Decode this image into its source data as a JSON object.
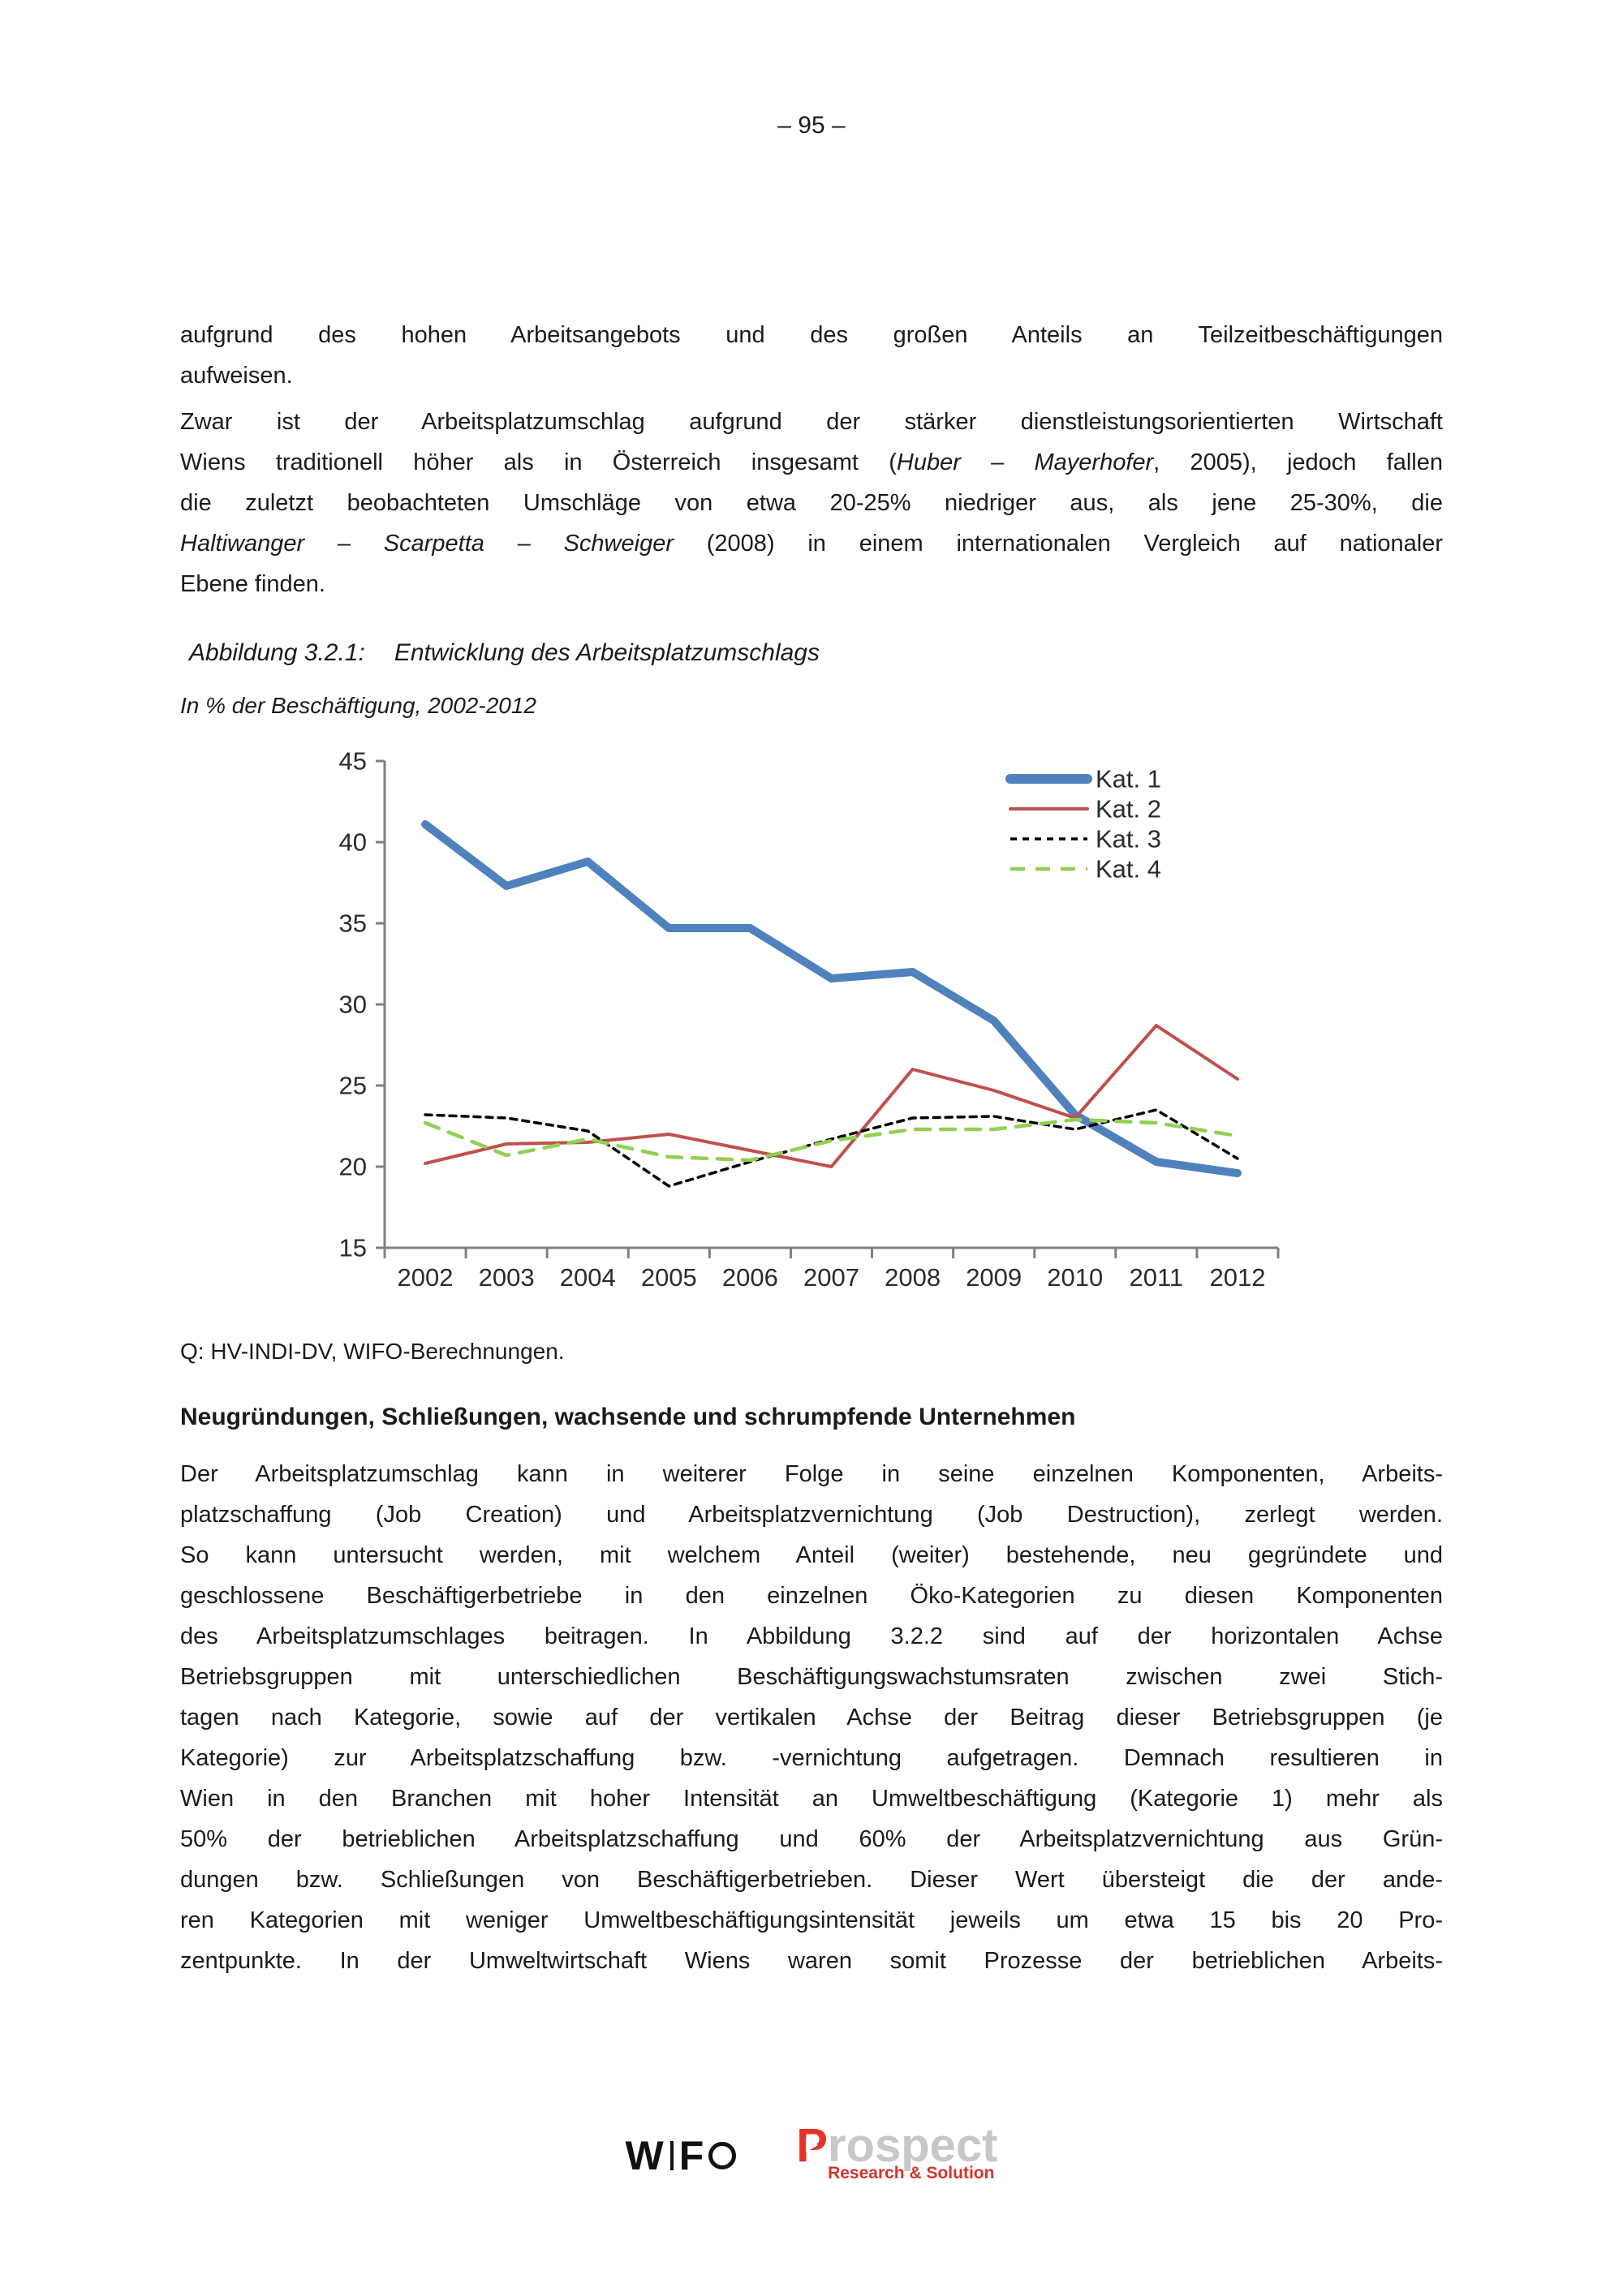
{
  "page": {
    "number": "– 95 –"
  },
  "intro": {
    "p1_lines": [
      {
        "text": "aufgrund des hohen Arbeitsangebots und des großen Anteils an Teilzeitbeschäftigungen",
        "just": true
      },
      {
        "text": "aufweisen.",
        "just": false
      }
    ],
    "p2_lines": [
      {
        "segs": [
          {
            "t": "Zwar ist der Arbeitsplatzumschlag aufgrund der stärker dienstleistungsorientierten Wirtschaft"
          }
        ],
        "just": true
      },
      {
        "segs": [
          {
            "t": "Wiens traditionell höher als in Österreich insgesamt ("
          },
          {
            "t": "Huber – Mayerhofer",
            "i": true
          },
          {
            "t": ", 2005), jedoch fallen"
          }
        ],
        "just": true
      },
      {
        "segs": [
          {
            "t": "die zuletzt beobachteten Umschläge von etwa 20-25% niedriger aus, als jene 25-30%, die"
          }
        ],
        "just": true
      },
      {
        "segs": [
          {
            "t": "Haltiwanger – Scarpetta – Schweiger",
            "i": true
          },
          {
            "t": " (2008) in einem internationalen Vergleich auf nationaler"
          }
        ],
        "just": true
      },
      {
        "segs": [
          {
            "t": "Ebene finden."
          }
        ],
        "just": false
      }
    ]
  },
  "figure": {
    "caption_label": "Abbildung 3.2.1:",
    "caption_title": "Entwicklung des Arbeitsplatzumschlags",
    "subtitle": "In % der Beschäftigung, 2002-2012",
    "source": "Q: HV-INDI-DV, WIFO-Berechnungen."
  },
  "chart_data": {
    "type": "line",
    "title": "Entwicklung des Arbeitsplatzumschlags",
    "subtitle": "In % der Beschäftigung, 2002-2012",
    "xlabel": "",
    "ylabel": "",
    "categories": [
      "2002",
      "2003",
      "2004",
      "2005",
      "2006",
      "2007",
      "2008",
      "2009",
      "2010",
      "2011",
      "2012"
    ],
    "series": [
      {
        "name": "Kat. 1",
        "color": "#4F81BD",
        "width": 10,
        "dash": "solid",
        "values": [
          41.1,
          37.3,
          38.8,
          34.7,
          34.7,
          31.6,
          32.0,
          29.0,
          23.2,
          20.3,
          19.6
        ]
      },
      {
        "name": "Kat. 2",
        "color": "#C0504D",
        "width": 4,
        "dash": "solid",
        "values": [
          20.2,
          21.4,
          21.5,
          22.0,
          21.0,
          20.0,
          26.0,
          24.7,
          23.0,
          28.7,
          25.4
        ]
      },
      {
        "name": "Kat. 3",
        "color": "#000000",
        "width": 3.5,
        "dash": "dotted",
        "values": [
          23.2,
          23.0,
          22.2,
          18.8,
          20.3,
          21.7,
          23.0,
          23.1,
          22.3,
          23.5,
          20.5
        ]
      },
      {
        "name": "Kat. 4",
        "color": "#92D050",
        "width": 4.5,
        "dash": "dashed",
        "values": [
          22.7,
          20.7,
          21.7,
          20.6,
          20.4,
          21.6,
          22.3,
          22.3,
          22.9,
          22.7,
          21.9
        ]
      }
    ],
    "ylim": [
      15,
      45
    ],
    "ytick_step": 5,
    "grid": false,
    "legend_position": "top-right",
    "axis_color": "#808080"
  },
  "section": {
    "heading": "Neugründungen, Schließungen, wachsende und schrumpfende Unternehmen"
  },
  "body_lines": [
    {
      "text": "Der Arbeitsplatzumschlag kann in weiterer Folge in seine einzelnen Komponenten, Arbeits-",
      "just": true
    },
    {
      "text": "platzschaffung (Job Creation) und Arbeitsplatzvernichtung (Job Destruction), zerlegt werden.",
      "just": true
    },
    {
      "text": "So kann untersucht werden, mit welchem Anteil (weiter) bestehende, neu gegründete und",
      "just": true
    },
    {
      "text": "geschlossene Beschäftigerbetriebe in den einzelnen Öko-Kategorien zu diesen Komponenten",
      "just": true
    },
    {
      "text": "des Arbeitsplatzumschlages beitragen. In Abbildung 3.2.2 sind auf der horizontalen Achse",
      "just": true
    },
    {
      "text": "Betriebsgruppen mit unterschiedlichen Beschäftigungswachstumsraten zwischen zwei Stich-",
      "just": true
    },
    {
      "text": "tagen nach Kategorie, sowie auf der vertikalen Achse der Beitrag dieser Betriebsgruppen (je",
      "just": true
    },
    {
      "text": "Kategorie) zur Arbeitsplatzschaffung bzw. -vernichtung aufgetragen. Demnach resultieren in",
      "just": true
    },
    {
      "text": "Wien in den Branchen mit hoher Intensität an Umweltbeschäftigung (Kategorie 1) mehr als",
      "just": true
    },
    {
      "text": "50% der betrieblichen Arbeitsplatzschaffung und 60% der Arbeitsplatzvernichtung aus Grün-",
      "just": true
    },
    {
      "text": "dungen bzw. Schließungen von Beschäftigerbetrieben. Dieser Wert übersteigt die der ande-",
      "just": true
    },
    {
      "text": "ren Kategorien mit weniger Umweltbeschäftigungsintensität jeweils um etwa 15 bis 20 Pro-",
      "just": true
    },
    {
      "text": "zentpunkte. In der Umweltwirtschaft Wiens waren somit Prozesse der betrieblichen Arbeits-",
      "just": true
    }
  ],
  "footer": {
    "wifo": {
      "part1": "W",
      "part2": "F"
    },
    "prospect": {
      "initial": "P",
      "rest": "rospect",
      "tagline": "Research & Solution"
    },
    "colors": {
      "prospect_red": "#E6332A",
      "prospect_gray": "#C7C7C7",
      "wifo_black": "#111111"
    }
  }
}
